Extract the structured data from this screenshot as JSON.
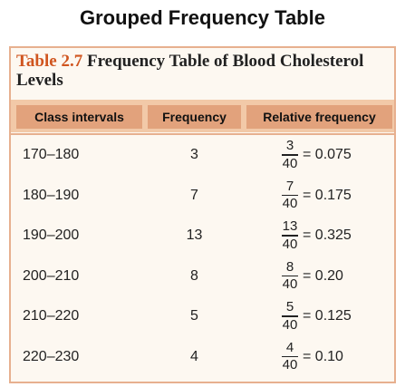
{
  "page_title": "Grouped Frequency Table",
  "caption": {
    "table_number": "Table 2.7",
    "title": "Frequency Table of Blood Cholesterol Levels"
  },
  "headers": {
    "class_intervals": "Class intervals",
    "frequency": "Frequency",
    "relative_frequency": "Relative frequency"
  },
  "rows": [
    {
      "interval": "170–180",
      "frequency": "3",
      "numerator": "3",
      "denominator": "40",
      "relative": "= 0.075"
    },
    {
      "interval": "180–190",
      "frequency": "7",
      "numerator": "7",
      "denominator": "40",
      "relative": "= 0.175"
    },
    {
      "interval": "190–200",
      "frequency": "13",
      "numerator": "13",
      "denominator": "40",
      "relative": "= 0.325"
    },
    {
      "interval": "200–210",
      "frequency": "8",
      "numerator": "8",
      "denominator": "40",
      "relative": "= 0.20"
    },
    {
      "interval": "210–220",
      "frequency": "5",
      "numerator": "5",
      "denominator": "40",
      "relative": "= 0.125"
    },
    {
      "interval": "220–230",
      "frequency": "4",
      "numerator": "4",
      "denominator": "40",
      "relative": "= 0.10"
    }
  ],
  "colors": {
    "accent": "#d0551f",
    "header_band": "#f2c9a8",
    "header_cell": "#e2a27c",
    "border": "#e7b08f"
  }
}
